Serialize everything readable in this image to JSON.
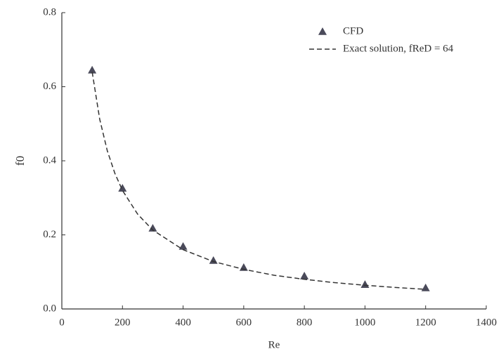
{
  "chart_data": {
    "type": "scatter",
    "x_label": "Re",
    "y_label": "f0",
    "xlim": [
      0,
      1400
    ],
    "xticks": [
      0,
      200,
      400,
      600,
      800,
      1000,
      1200,
      1400
    ],
    "ylim": [
      0,
      0.8
    ],
    "yticks": [
      {
        "value": 0,
        "label": "0.0"
      },
      0.2,
      0.4,
      0.6,
      0.8
    ],
    "series": [
      {
        "name": "CFD",
        "style": "markers",
        "color": "#4a4a5a",
        "x": [
          100,
          200,
          300,
          400,
          500,
          600,
          800,
          1000,
          1200
        ],
        "values": [
          0.645,
          0.326,
          0.218,
          0.169,
          0.131,
          0.112,
          0.089,
          0.066,
          0.057
        ]
      },
      {
        "name": "Exact solution, fReD = 64",
        "style": "dashed",
        "color": "#333333",
        "x": [
          100,
          125,
          150,
          175,
          200,
          250,
          300,
          400,
          500,
          600,
          700,
          800,
          900,
          1000,
          1100,
          1200
        ],
        "values": [
          0.64,
          0.512,
          0.427,
          0.366,
          0.32,
          0.256,
          0.213,
          0.16,
          0.128,
          0.107,
          0.091,
          0.08,
          0.071,
          0.064,
          0.058,
          0.053
        ]
      }
    ]
  }
}
